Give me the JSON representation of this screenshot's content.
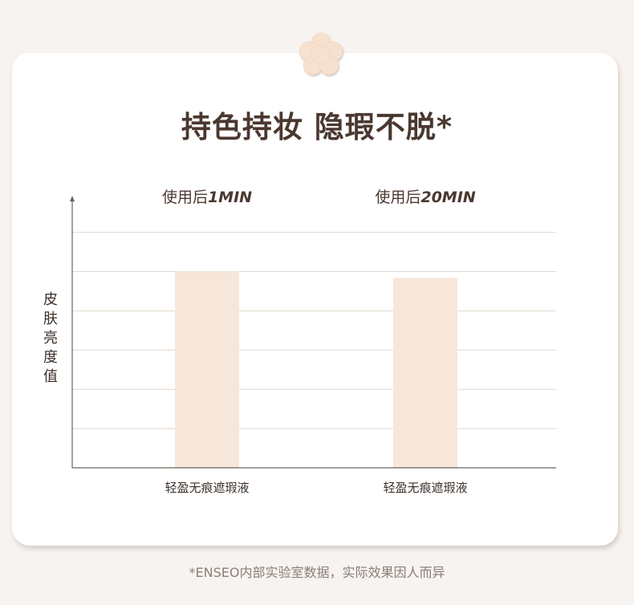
{
  "page": {
    "title": "持色持妆 隐瑕不脱*",
    "footnote": "*ENSEO内部实验室数据，实际效果因人而异",
    "icon": "flower-icon",
    "colors": {
      "background": "#f7f3f0",
      "card": "#ffffff",
      "bar": "#f7e6da",
      "grid": "#e2d8cc",
      "axis": "#6a605c",
      "text": "#4a3830"
    }
  },
  "chart_data": {
    "type": "bar",
    "title": "持色持妆 隐瑕不脱*",
    "ylabel": "皮肤亮度值",
    "xlabel": "",
    "groups": [
      "使用后1MIN",
      "使用后20MIN"
    ],
    "categories": [
      "轻盈无痕遮瑕液",
      "轻盈无痕遮瑕液"
    ],
    "values": [
      5.0,
      4.84
    ],
    "ylim": [
      0,
      6.7
    ],
    "gridlines": [
      1,
      2,
      3,
      4,
      5,
      6
    ],
    "grid": true,
    "y_tick_labels": false,
    "legend": "none"
  }
}
